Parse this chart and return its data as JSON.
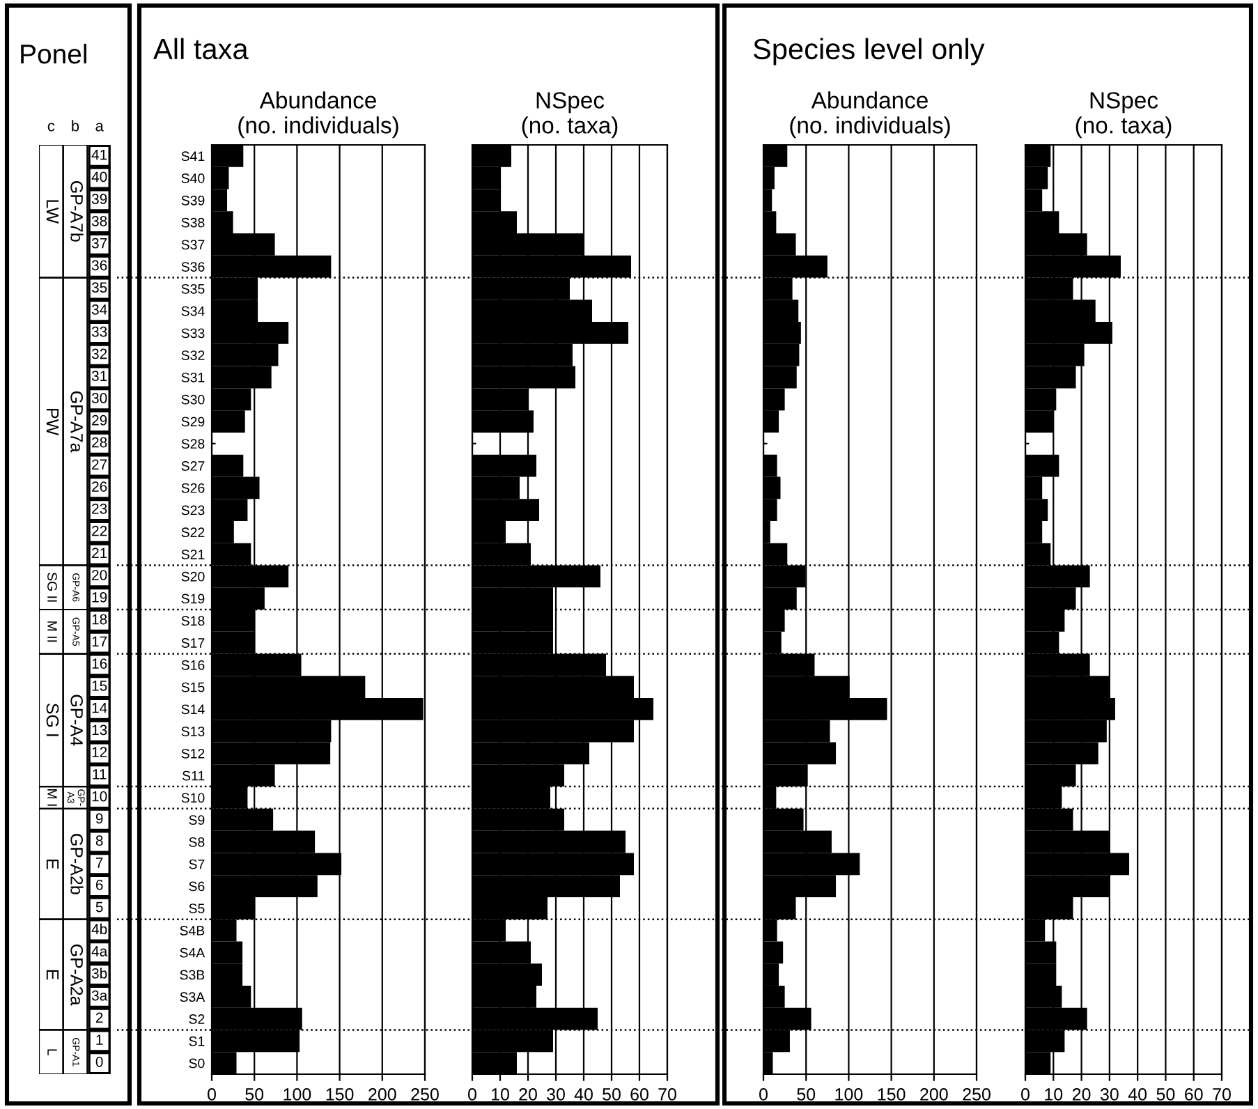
{
  "chart_data": [
    {
      "type": "other",
      "title": "Ponel",
      "categories": [
        "c",
        "b",
        "a"
      ],
      "cell_labels": [
        [
          "LW",
          "GP-A7b",
          "41"
        ],
        [
          null,
          null,
          "40"
        ],
        [
          null,
          null,
          "39"
        ],
        [
          null,
          null,
          "38"
        ],
        [
          null,
          null,
          "37"
        ],
        [
          null,
          null,
          "36"
        ],
        [
          "PW",
          "GP-A7a",
          "35"
        ],
        [
          null,
          null,
          "34"
        ],
        [
          null,
          null,
          "33"
        ],
        [
          null,
          null,
          "32"
        ],
        [
          null,
          null,
          "31"
        ],
        [
          null,
          null,
          "30"
        ],
        [
          null,
          null,
          "29"
        ],
        [
          null,
          null,
          "28"
        ],
        [
          null,
          null,
          "27"
        ],
        [
          null,
          null,
          "26"
        ],
        [
          null,
          null,
          "23"
        ],
        [
          null,
          null,
          "22"
        ],
        [
          null,
          null,
          "21"
        ],
        [
          "SG II",
          "GP-A6",
          "20"
        ],
        [
          null,
          null,
          "19"
        ],
        [
          "M II",
          "GP-A5",
          "18"
        ],
        [
          null,
          null,
          "17"
        ],
        [
          "SG I",
          "GP-A4",
          "16"
        ],
        [
          null,
          null,
          "15"
        ],
        [
          null,
          null,
          "14"
        ],
        [
          null,
          null,
          "13"
        ],
        [
          null,
          null,
          "12"
        ],
        [
          null,
          null,
          "11"
        ],
        [
          "M I",
          "GP-\nA3",
          "10"
        ],
        [
          "E",
          "GP-A2b",
          "9"
        ],
        [
          null,
          null,
          "8"
        ],
        [
          null,
          null,
          "7"
        ],
        [
          null,
          null,
          "6"
        ],
        [
          null,
          null,
          "5"
        ],
        [
          "E",
          "GP-A2a",
          "4b"
        ],
        [
          null,
          null,
          "4a"
        ],
        [
          null,
          null,
          "3b"
        ],
        [
          null,
          null,
          "3a"
        ],
        [
          null,
          null,
          "2"
        ],
        [
          "L",
          "GP-A1",
          "1"
        ],
        [
          null,
          null,
          "0"
        ]
      ]
    },
    {
      "type": "bar",
      "orientation": "horizontal",
      "title": "Abundance\n(no. individuals)",
      "annotations": [
        "All taxa"
      ],
      "color": "#000000",
      "grid": "x",
      "categories": [
        "S41",
        "S40",
        "S39",
        "S38",
        "S37",
        "S36",
        "S35",
        "S34",
        "S33",
        "S32",
        "S31",
        "S30",
        "S29",
        "S28",
        "S27",
        "S26",
        "S23",
        "S22",
        "S21",
        "S20",
        "S19",
        "S18",
        "S17",
        "S16",
        "S15",
        "S14",
        "S13",
        "S12",
        "S11",
        "S10",
        "S9",
        "S8",
        "S7",
        "S6",
        "S5",
        "S4B",
        "S4A",
        "S3B",
        "S3A",
        "S2",
        "S1",
        "S0"
      ],
      "values": [
        37,
        20,
        18,
        25,
        74,
        140,
        54,
        54,
        90,
        78,
        70,
        46,
        39,
        null,
        37,
        56,
        42,
        26,
        46,
        90,
        62,
        51,
        51,
        105,
        180,
        248,
        140,
        139,
        74,
        42,
        72,
        121,
        152,
        124,
        51,
        29,
        36,
        36,
        46,
        106,
        103,
        29
      ],
      "xlim": [
        0,
        250
      ],
      "xticks": [
        0,
        50,
        100,
        150,
        200,
        250
      ]
    },
    {
      "type": "bar",
      "orientation": "horizontal",
      "title": "NSpec\n(no. taxa)",
      "color": "#000000",
      "grid": "x",
      "tick_labels": "x",
      "categories": [
        null,
        null,
        null,
        null,
        null,
        null,
        null,
        null,
        null,
        null,
        null,
        null,
        null,
        null,
        null,
        null,
        null,
        null,
        null,
        null,
        null,
        null,
        null,
        null,
        null,
        null,
        null,
        null,
        null,
        null,
        null,
        null,
        null,
        null,
        null,
        null,
        null,
        null,
        null,
        null,
        null,
        null
      ],
      "values": [
        14,
        10,
        10,
        16,
        40,
        57,
        35,
        43,
        56,
        36,
        37,
        20,
        22,
        null,
        23,
        17,
        24,
        12,
        21,
        46,
        29,
        29,
        29,
        48,
        58,
        65,
        58,
        42,
        33,
        28,
        33,
        55,
        58,
        53,
        27,
        12,
        21,
        25,
        23,
        45,
        29,
        16
      ],
      "xlim": [
        0,
        70
      ],
      "xticks": [
        0,
        10,
        20,
        30,
        40,
        50,
        60,
        70
      ]
    },
    {
      "type": "bar",
      "orientation": "horizontal",
      "title": "Abundance\n(no. individuals)",
      "annotations": [
        "Species level only"
      ],
      "color": "#000000",
      "grid": "x",
      "tick_labels": "x",
      "categories": [
        null,
        null,
        null,
        null,
        null,
        null,
        null,
        null,
        null,
        null,
        null,
        null,
        null,
        null,
        null,
        null,
        null,
        null,
        null,
        null,
        null,
        null,
        null,
        null,
        null,
        null,
        null,
        null,
        null,
        null,
        null,
        null,
        null,
        null,
        null,
        null,
        null,
        null,
        null,
        null,
        null,
        null
      ],
      "values": [
        28,
        13,
        10,
        15,
        38,
        75,
        34,
        41,
        44,
        42,
        39,
        25,
        18,
        null,
        16,
        20,
        16,
        8,
        28,
        49,
        39,
        25,
        21,
        60,
        101,
        145,
        78,
        85,
        52,
        15,
        47,
        80,
        113,
        85,
        38,
        16,
        23,
        18,
        25,
        56,
        31,
        11
      ],
      "xlim": [
        0,
        250
      ],
      "xticks": [
        0,
        50,
        100,
        150,
        200,
        250
      ]
    },
    {
      "type": "bar",
      "orientation": "horizontal",
      "title": "NSpec\n(no. taxa)",
      "color": "#000000",
      "grid": "x",
      "tick_labels": "x",
      "categories": [
        null,
        null,
        null,
        null,
        null,
        null,
        null,
        null,
        null,
        null,
        null,
        null,
        null,
        null,
        null,
        null,
        null,
        null,
        null,
        null,
        null,
        null,
        null,
        null,
        null,
        null,
        null,
        null,
        null,
        null,
        null,
        null,
        null,
        null,
        null,
        null,
        null,
        null,
        null,
        null,
        null,
        null
      ],
      "values": [
        9,
        8,
        6,
        12,
        22,
        34,
        17,
        25,
        31,
        21,
        18,
        11,
        10,
        null,
        12,
        6,
        8,
        6,
        9,
        23,
        18,
        14,
        12,
        23,
        30,
        32,
        29,
        26,
        18,
        13,
        17,
        30,
        37,
        30,
        17,
        7,
        11,
        11,
        13,
        22,
        14,
        9
      ],
      "xlim": [
        0,
        70
      ],
      "xticks": [
        0,
        10,
        20,
        30,
        40,
        50,
        60,
        70
      ]
    }
  ]
}
